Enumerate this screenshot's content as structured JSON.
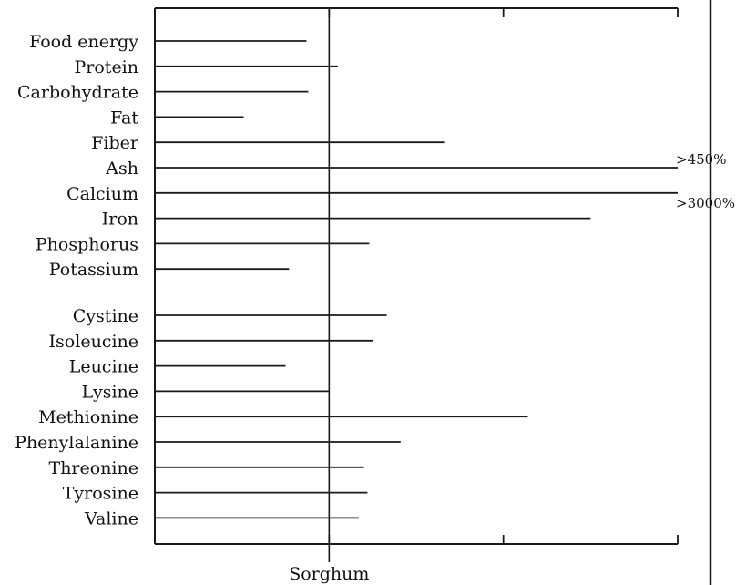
{
  "chart_data": {
    "type": "bar",
    "orientation": "horizontal",
    "reference_label": "Sorghum",
    "reference_value": 100,
    "xlim": [
      0,
      300
    ],
    "categories": [
      "Food energy",
      "Protein",
      "Carbohydrate",
      "Fat",
      "Fiber",
      "Ash",
      "Calcium",
      "Iron",
      "Phosphorus",
      "Potassium",
      "Cystine",
      "Isoleucine",
      "Leucine",
      "Lysine",
      "Methionine",
      "Phenylalanine",
      "Threonine",
      "Tyrosine",
      "Valine"
    ],
    "group_break_after": 9,
    "values": [
      87,
      105,
      88,
      51,
      166,
      300,
      300,
      250,
      123,
      77,
      133,
      125,
      75,
      100,
      214,
      141,
      120,
      122,
      117
    ],
    "annotations": [
      {
        "category": "Ash",
        "text": ">450%"
      },
      {
        "category": "Calcium",
        "text": ">3000%"
      }
    ],
    "grid": false,
    "bar_color": "#1a1a1a"
  }
}
